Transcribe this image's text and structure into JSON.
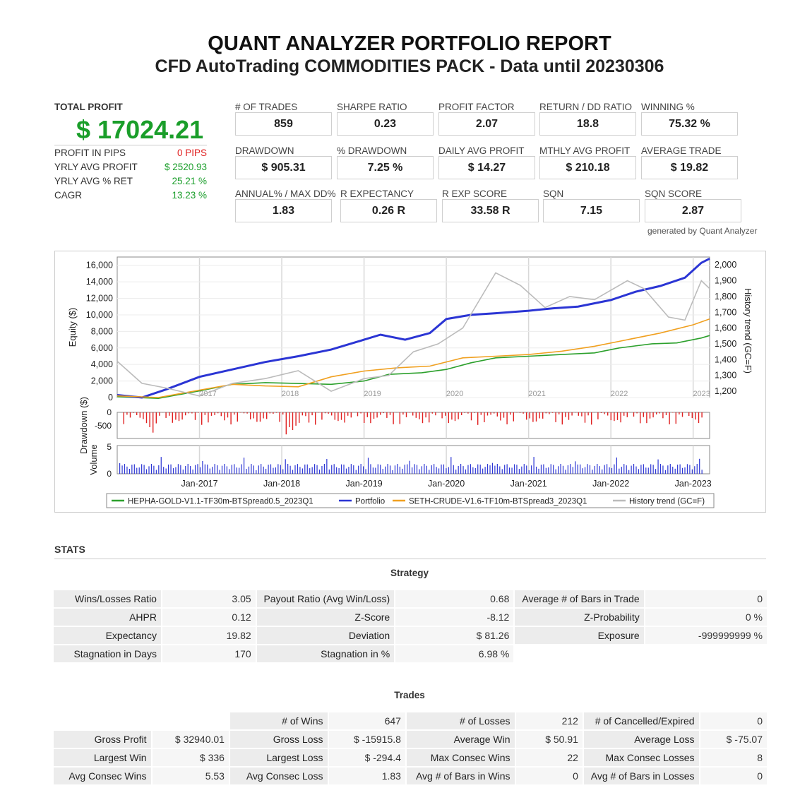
{
  "header": {
    "title": "QUANT ANALYZER PORTFOLIO REPORT",
    "subtitle": "CFD AutoTrading COMMODITIES PACK - Data until 20230306"
  },
  "summary": {
    "total_profit_label": "TOTAL PROFIT",
    "total_profit_value": "$ 17024.21",
    "rows": [
      {
        "label": "PROFIT IN PIPS",
        "value": "0 PIPS",
        "color": "#e02020"
      },
      {
        "label": "YRLY AVG PROFIT",
        "value": "$ 2520.93",
        "color": "#1a9e2a"
      },
      {
        "label": "YRLY AVG % RET",
        "value": "25.21 %",
        "color": "#1a9e2a"
      },
      {
        "label": "CAGR",
        "value": "13.23 %",
        "color": "#1a9e2a"
      }
    ]
  },
  "metrics": [
    {
      "label": "# OF TRADES",
      "value": "859"
    },
    {
      "label": "SHARPE RATIO",
      "value": "0.23"
    },
    {
      "label": "PROFIT FACTOR",
      "value": "2.07"
    },
    {
      "label": "RETURN / DD RATIO",
      "value": "18.8"
    },
    {
      "label": "WINNING %",
      "value": "75.32 %"
    },
    {
      "label": "DRAWDOWN",
      "value": "$ 905.31"
    },
    {
      "label": "% DRAWDOWN",
      "value": "7.25 %"
    },
    {
      "label": "DAILY AVG PROFIT",
      "value": "$ 14.27"
    },
    {
      "label": "MTHLY AVG PROFIT",
      "value": "$ 210.18"
    },
    {
      "label": "AVERAGE TRADE",
      "value": "$ 19.82"
    },
    {
      "label": "ANNUAL% / MAX DD%",
      "value": "1.83"
    },
    {
      "label": "R EXPECTANCY",
      "value": "0.26 R"
    },
    {
      "label": "R EXP SCORE",
      "value": "33.58 R"
    },
    {
      "label": "SQN",
      "value": "7.15"
    },
    {
      "label": "SQN SCORE",
      "value": "2.87"
    }
  ],
  "generated_by": "generated by Quant Analyzer",
  "chart_data": {
    "type": "line",
    "x_ticks_top": [
      "2017",
      "2018",
      "2019",
      "2020",
      "2021",
      "2022",
      "2023"
    ],
    "x_ticks_bottom": [
      "Jan-2017",
      "Jan-2018",
      "Jan-2019",
      "Jan-2020",
      "Jan-2021",
      "Jan-2022",
      "Jan-2023"
    ],
    "y_left_label": "Equity ($)",
    "y_left_ticks": [
      "0",
      "2,000",
      "4,000",
      "6,000",
      "8,000",
      "10,000",
      "12,000",
      "14,000",
      "16,000"
    ],
    "y_left_range": [
      0,
      17000
    ],
    "y_right_label": "History trend (GC=F)",
    "y_right_ticks": [
      "1,200",
      "1,300",
      "1,400",
      "1,500",
      "1,600",
      "1,700",
      "1,800",
      "1,900",
      "2,000"
    ],
    "y_right_range": [
      1160,
      2050
    ],
    "drawdown_label": "Drawdown ($)",
    "drawdown_ticks": [
      "0",
      "-500"
    ],
    "volume_label": "Volume",
    "volume_ticks": [
      "0",
      "5"
    ],
    "x_range_years": [
      2016.0,
      2023.2
    ],
    "series": [
      {
        "name": "HEPHA-GOLD-V1.1-TF30m-BTSpread0.5_2023Q1",
        "color": "#2ca02c",
        "x": [
          2016.0,
          2016.5,
          2017.0,
          2017.4,
          2017.8,
          2018.2,
          2018.6,
          2019.0,
          2019.3,
          2019.7,
          2020.0,
          2020.3,
          2020.6,
          2021.0,
          2021.4,
          2021.8,
          2022.1,
          2022.5,
          2022.8,
          2023.1,
          2023.2
        ],
        "y": [
          100,
          -100,
          800,
          1600,
          1800,
          1700,
          1600,
          2000,
          2800,
          3000,
          3400,
          4200,
          4800,
          5000,
          5200,
          5400,
          6000,
          6500,
          6600,
          7200,
          7500
        ]
      },
      {
        "name": "Portfolio",
        "color": "#2b35d4",
        "x": [
          2016.0,
          2016.3,
          2016.6,
          2017.0,
          2017.4,
          2017.8,
          2018.2,
          2018.6,
          2019.0,
          2019.2,
          2019.5,
          2019.8,
          2020.0,
          2020.3,
          2020.6,
          2021.0,
          2021.3,
          2021.6,
          2022.0,
          2022.3,
          2022.6,
          2022.9,
          2023.1,
          2023.2
        ],
        "y": [
          300,
          0,
          1000,
          2500,
          3400,
          4300,
          5000,
          5800,
          7000,
          7600,
          7000,
          7800,
          9500,
          10000,
          10200,
          10500,
          10800,
          11000,
          11800,
          12800,
          13500,
          14500,
          16300,
          16800
        ]
      },
      {
        "name": "SETH-CRUDE-V1.6-TF10m-BTSpread3_2023Q1",
        "color": "#f0a020",
        "x": [
          2016.0,
          2016.5,
          2017.0,
          2017.4,
          2017.8,
          2018.2,
          2018.6,
          2019.0,
          2019.4,
          2019.8,
          2020.2,
          2020.6,
          2021.0,
          2021.4,
          2021.8,
          2022.2,
          2022.6,
          2023.0,
          2023.2
        ],
        "y": [
          200,
          0,
          900,
          1600,
          1400,
          1300,
          2500,
          3200,
          3600,
          3800,
          4800,
          5000,
          5200,
          5600,
          6200,
          7000,
          7800,
          8800,
          9500
        ]
      },
      {
        "name": "History trend (GC=F)",
        "color": "#bbbbbb",
        "axis": "right",
        "x": [
          2016.0,
          2016.3,
          2016.6,
          2017.0,
          2017.4,
          2017.8,
          2018.2,
          2018.6,
          2019.0,
          2019.3,
          2019.6,
          2019.9,
          2020.2,
          2020.6,
          2020.9,
          2021.2,
          2021.5,
          2021.8,
          2022.2,
          2022.4,
          2022.7,
          2022.9,
          2023.1,
          2023.2
        ],
        "y": [
          1390,
          1250,
          1220,
          1170,
          1250,
          1280,
          1330,
          1200,
          1280,
          1300,
          1450,
          1500,
          1600,
          1950,
          1870,
          1730,
          1800,
          1780,
          1900,
          1850,
          1670,
          1650,
          1900,
          1850
        ]
      }
    ]
  },
  "legend": [
    {
      "label": "HEPHA-GOLD-V1.1-TF30m-BTSpread0.5_2023Q1",
      "color": "#2ca02c"
    },
    {
      "label": "Portfolio",
      "color": "#2b35d4"
    },
    {
      "label": "SETH-CRUDE-V1.6-TF10m-BTSpread3_2023Q1",
      "color": "#f0a020"
    },
    {
      "label": "History trend (GC=F)",
      "color": "#bbbbbb"
    }
  ],
  "stats": {
    "heading": "STATS",
    "strategy_title": "Strategy",
    "strategy_rows": [
      [
        "Wins/Losses Ratio",
        "3.05",
        "Payout Ratio (Avg Win/Loss)",
        "0.68",
        "Average # of Bars in Trade",
        "0"
      ],
      [
        "AHPR",
        "0.12",
        "Z-Score",
        "-8.12",
        "Z-Probability",
        "0 %"
      ],
      [
        "Expectancy",
        "19.82",
        "Deviation",
        "$ 81.26",
        "Exposure",
        "-999999999 %"
      ],
      [
        "Stagnation in Days",
        "170",
        "Stagnation in %",
        "6.98 %",
        "",
        ""
      ]
    ],
    "trades_title": "Trades",
    "trades_rows": [
      [
        "",
        "",
        "# of Wins",
        "647",
        "# of Losses",
        "212",
        "# of Cancelled/Expired",
        "0"
      ],
      [
        "Gross Profit",
        "$ 32940.01",
        "Gross Loss",
        "$ -15915.8",
        "Average Win",
        "$ 50.91",
        "Average Loss",
        "$ -75.07"
      ],
      [
        "Largest Win",
        "$ 336",
        "Largest Loss",
        "$ -294.4",
        "Max Consec Wins",
        "22",
        "Max Consec Losses",
        "8"
      ],
      [
        "Avg Consec Wins",
        "5.53",
        "Avg Consec Loss",
        "1.83",
        "Avg # of Bars in Wins",
        "0",
        "Avg # of Bars in Losses",
        "0"
      ]
    ]
  }
}
